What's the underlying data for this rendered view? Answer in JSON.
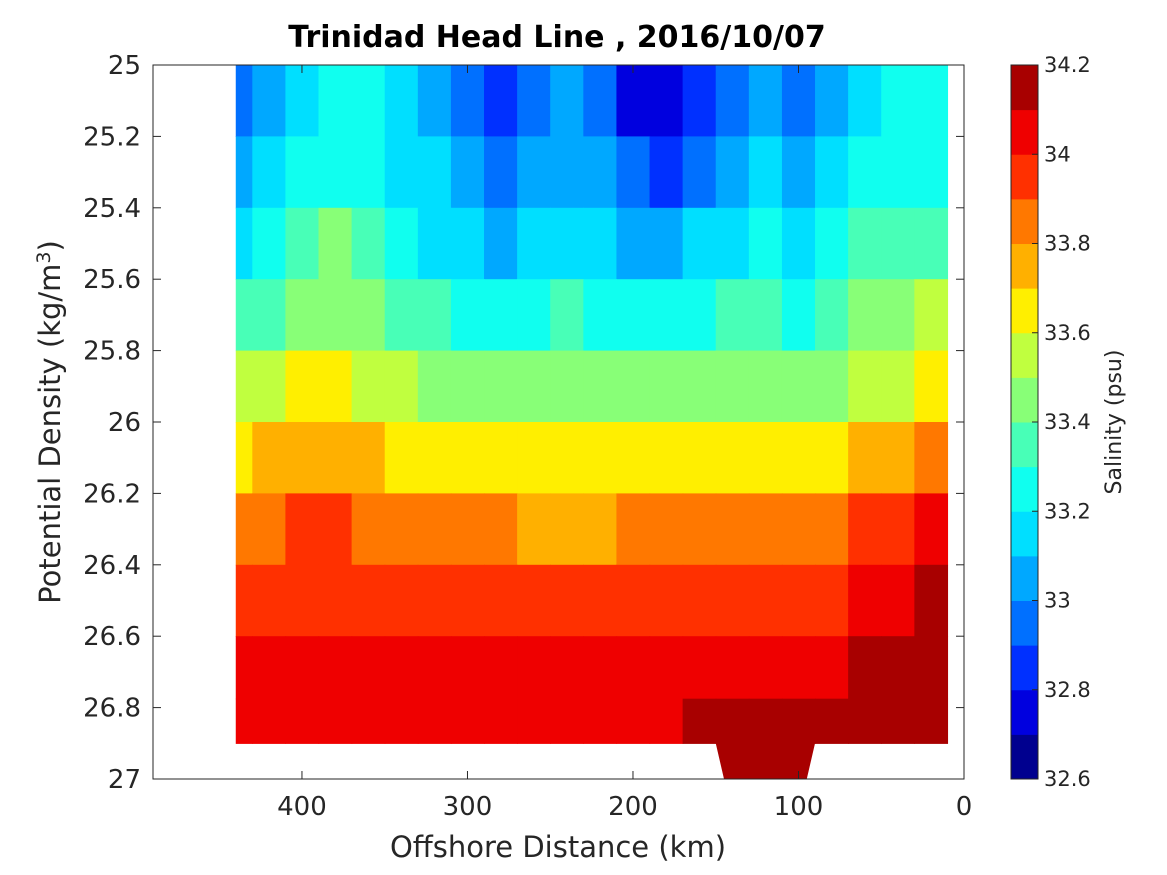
{
  "chart_data": {
    "type": "heatmap",
    "subtype": "filled-contour",
    "title": "Trinidad Head Line , 2016/10/07",
    "xlabel": "Offshore Distance (km)",
    "ylabel_main": "Potential Density (kg/m",
    "ylabel_sup": "3",
    "ylabel_close": ")",
    "x_reversed": true,
    "xlim": [
      0,
      490
    ],
    "xticks": [
      400,
      300,
      200,
      100,
      0
    ],
    "xtick_labels": [
      "400",
      "300",
      "200",
      "100",
      "0"
    ],
    "y_reversed": true,
    "ylim": [
      25,
      27
    ],
    "yticks": [
      25,
      25.2,
      25.4,
      25.6,
      25.8,
      26,
      26.2,
      26.4,
      26.6,
      26.8,
      27
    ],
    "ytick_labels": [
      "25",
      "25.2",
      "25.4",
      "25.6",
      "25.8",
      "26",
      "26.2",
      "26.4",
      "26.6",
      "26.8",
      "27"
    ],
    "colorbar": {
      "label": "Salinity (psu)",
      "levels": [
        32.6,
        32.7,
        32.8,
        32.9,
        33.0,
        33.1,
        33.2,
        33.3,
        33.4,
        33.5,
        33.6,
        33.7,
        33.8,
        33.9,
        34.0,
        34.1,
        34.2
      ],
      "tick_values": [
        32.6,
        32.8,
        33.0,
        33.2,
        33.4,
        33.6,
        33.8,
        34.0,
        34.2
      ],
      "tick_labels": [
        "32.6",
        "32.8",
        "33",
        "33.2",
        "33.4",
        "33.6",
        "33.8",
        "34",
        "34.2"
      ],
      "colors": [
        "#00008f",
        "#0000df",
        "#0030ff",
        "#0070ff",
        "#00a8ff",
        "#00dfff",
        "#10ffef",
        "#48ffb7",
        "#88ff77",
        "#c0ff3f",
        "#ffef00",
        "#ffb000",
        "#ff7800",
        "#ff3000",
        "#ef0000",
        "#a80000"
      ],
      "colormap": "jet"
    },
    "data_extent": {
      "x_max": 440,
      "x_min": 10,
      "y_min": 25,
      "y_max_mostly": 26.9,
      "y_max_at_x_150_90": 27
    },
    "bands": {
      "x": [
        440,
        420,
        400,
        380,
        360,
        340,
        320,
        300,
        280,
        260,
        240,
        220,
        200,
        180,
        160,
        140,
        120,
        100,
        80,
        60,
        40,
        20
      ],
      "salinity_by_density": [
        {
          "density": 25.1,
          "values": [
            32.95,
            33.05,
            33.2,
            33.25,
            33.25,
            33.15,
            33.1,
            33.0,
            32.85,
            32.95,
            33.05,
            32.95,
            32.8,
            32.75,
            32.85,
            32.95,
            33.05,
            32.95,
            33.1,
            33.2,
            33.25,
            33.25
          ]
        },
        {
          "density": 25.3,
          "values": [
            33.05,
            33.15,
            33.3,
            33.3,
            33.25,
            33.2,
            33.15,
            33.05,
            32.95,
            33.05,
            33.1,
            33.05,
            32.95,
            32.9,
            33.0,
            33.05,
            33.15,
            33.05,
            33.15,
            33.3,
            33.3,
            33.25
          ]
        },
        {
          "density": 25.5,
          "values": [
            33.15,
            33.25,
            33.4,
            33.45,
            33.35,
            33.25,
            33.2,
            33.15,
            33.1,
            33.15,
            33.2,
            33.15,
            33.1,
            33.05,
            33.15,
            33.2,
            33.25,
            33.15,
            33.25,
            33.35,
            33.4,
            33.35
          ]
        },
        {
          "density": 25.7,
          "values": [
            33.35,
            33.4,
            33.5,
            33.5,
            33.45,
            33.4,
            33.35,
            33.3,
            33.3,
            33.3,
            33.35,
            33.3,
            33.25,
            33.25,
            33.3,
            33.35,
            33.4,
            33.3,
            33.35,
            33.45,
            33.5,
            33.55
          ]
        },
        {
          "density": 25.9,
          "values": [
            33.55,
            33.6,
            33.65,
            33.65,
            33.6,
            33.55,
            33.5,
            33.5,
            33.5,
            33.5,
            33.5,
            33.45,
            33.45,
            33.45,
            33.5,
            33.5,
            33.5,
            33.5,
            33.5,
            33.55,
            33.6,
            33.65
          ]
        },
        {
          "density": 26.1,
          "values": [
            33.7,
            33.75,
            33.8,
            33.8,
            33.75,
            33.7,
            33.7,
            33.65,
            33.65,
            33.65,
            33.65,
            33.65,
            33.65,
            33.65,
            33.7,
            33.7,
            33.7,
            33.7,
            33.7,
            33.75,
            33.8,
            33.85
          ]
        },
        {
          "density": 26.3,
          "values": [
            33.85,
            33.9,
            33.95,
            33.95,
            33.9,
            33.85,
            33.85,
            33.85,
            33.85,
            33.8,
            33.8,
            33.8,
            33.85,
            33.85,
            33.85,
            33.85,
            33.85,
            33.85,
            33.85,
            33.95,
            34.0,
            34.05
          ]
        },
        {
          "density": 26.5,
          "values": [
            34.0,
            34.0,
            34.0,
            34.0,
            34.0,
            34.0,
            34.0,
            34.0,
            34.0,
            33.95,
            33.95,
            33.95,
            34.0,
            34.0,
            34.0,
            34.0,
            34.0,
            34.0,
            34.0,
            34.05,
            34.1,
            34.15
          ]
        },
        {
          "density": 26.7,
          "values": [
            34.05,
            34.05,
            34.05,
            34.05,
            34.05,
            34.05,
            34.05,
            34.05,
            34.05,
            34.05,
            34.05,
            34.05,
            34.05,
            34.05,
            34.05,
            34.05,
            34.1,
            34.1,
            34.1,
            34.15,
            34.2,
            34.2
          ]
        },
        {
          "density": 26.85,
          "values": [
            34.1,
            34.1,
            34.1,
            34.1,
            34.1,
            34.1,
            34.1,
            34.1,
            34.1,
            34.1,
            34.1,
            34.1,
            34.1,
            34.1,
            34.15,
            34.15,
            34.15,
            34.15,
            34.15,
            34.2,
            34.2,
            34.2
          ]
        }
      ]
    }
  }
}
